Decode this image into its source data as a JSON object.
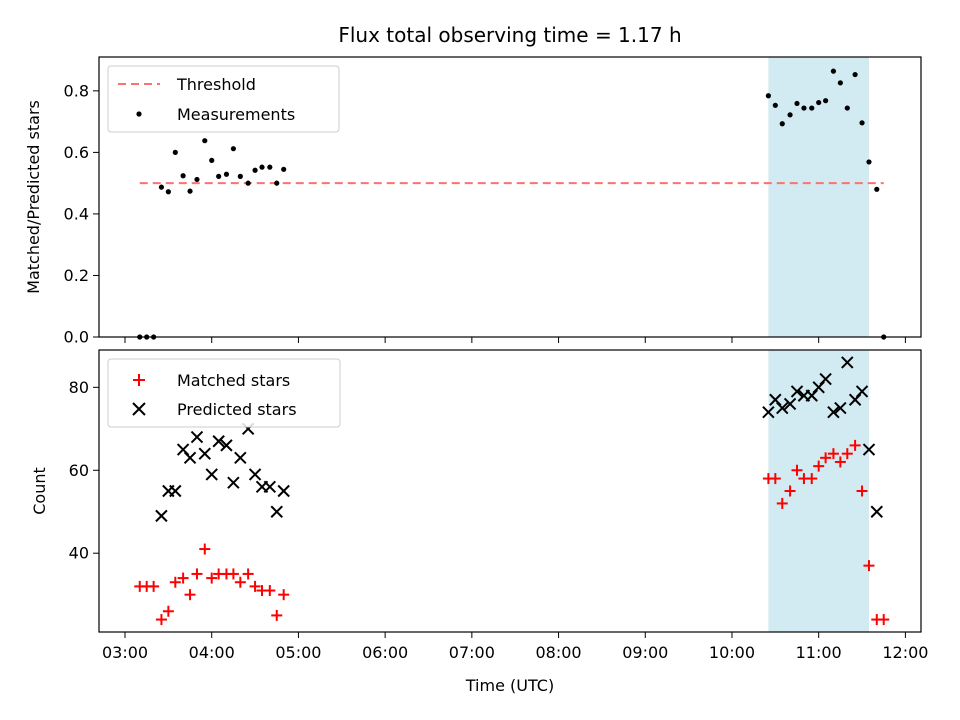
{
  "chart_data": {
    "title": "Flux total observing time = 1.17 h",
    "xlabel": "Time (UTC)",
    "xticks": [
      "03:00",
      "04:00",
      "05:00",
      "06:00",
      "07:00",
      "08:00",
      "09:00",
      "10:00",
      "11:00",
      "12:00"
    ],
    "xlim_hours": [
      2.7,
      12.18
    ],
    "shaded_span_hours": [
      10.42,
      11.58
    ],
    "shade_color": "#add8e6",
    "panels": [
      {
        "type": "scatter",
        "ylabel": "Matched/Predicted stars",
        "ylim": [
          0,
          0.91
        ],
        "yticks": [
          "0.0",
          "0.2",
          "0.4",
          "0.6",
          "0.8"
        ],
        "yticks_values": [
          0,
          0.2,
          0.4,
          0.6,
          0.8
        ],
        "legend": {
          "placement": "top-left",
          "entries": [
            "Threshold",
            "Measurements"
          ]
        },
        "threshold": {
          "name": "Threshold",
          "value": 0.5,
          "x_range_hours": [
            3.17,
            11.75
          ],
          "color": "#ff7070",
          "style": "dashed"
        },
        "series": [
          {
            "name": "Measurements",
            "marker": "dot",
            "color": "#000000",
            "points": [
              [
                3.17,
                0
              ],
              [
                3.25,
                0
              ],
              [
                3.33,
                0
              ],
              [
                3.42,
                0.487
              ],
              [
                3.5,
                0.472
              ],
              [
                3.58,
                0.6
              ],
              [
                3.67,
                0.524
              ],
              [
                3.75,
                0.474
              ],
              [
                3.83,
                0.512
              ],
              [
                3.92,
                0.638
              ],
              [
                4.0,
                0.574
              ],
              [
                4.08,
                0.522
              ],
              [
                4.17,
                0.529
              ],
              [
                4.25,
                0.612
              ],
              [
                4.33,
                0.522
              ],
              [
                4.42,
                0.5
              ],
              [
                4.5,
                0.542
              ],
              [
                4.58,
                0.552
              ],
              [
                4.67,
                0.552
              ],
              [
                4.75,
                0.5
              ],
              [
                4.83,
                0.545
              ],
              [
                10.42,
                0.784
              ],
              [
                10.5,
                0.753
              ],
              [
                10.58,
                0.693
              ],
              [
                10.67,
                0.722
              ],
              [
                10.75,
                0.759
              ],
              [
                10.83,
                0.744
              ],
              [
                10.92,
                0.744
              ],
              [
                11.0,
                0.762
              ],
              [
                11.08,
                0.768
              ],
              [
                11.17,
                0.864
              ],
              [
                11.25,
                0.826
              ],
              [
                11.33,
                0.744
              ],
              [
                11.42,
                0.853
              ],
              [
                11.5,
                0.696
              ],
              [
                11.58,
                0.569
              ],
              [
                11.67,
                0.48
              ],
              [
                11.75,
                0
              ]
            ]
          }
        ]
      },
      {
        "type": "scatter",
        "ylabel": "Count",
        "ylim": [
          21,
          89
        ],
        "yticks": [
          "40",
          "60",
          "80"
        ],
        "yticks_values": [
          40,
          60,
          80
        ],
        "legend": {
          "placement": "top-left",
          "entries": [
            "Matched stars",
            "Predicted stars"
          ]
        },
        "series": [
          {
            "name": "Matched stars",
            "marker": "plus",
            "color": "#ff0000",
            "points": [
              [
                3.17,
                32
              ],
              [
                3.25,
                32
              ],
              [
                3.33,
                32
              ],
              [
                3.42,
                24
              ],
              [
                3.5,
                26
              ],
              [
                3.58,
                33
              ],
              [
                3.67,
                34
              ],
              [
                3.75,
                30
              ],
              [
                3.83,
                35
              ],
              [
                3.92,
                41
              ],
              [
                4.0,
                34
              ],
              [
                4.08,
                35
              ],
              [
                4.17,
                35
              ],
              [
                4.25,
                35
              ],
              [
                4.33,
                33
              ],
              [
                4.42,
                35
              ],
              [
                4.5,
                32
              ],
              [
                4.58,
                31
              ],
              [
                4.67,
                31
              ],
              [
                4.75,
                25
              ],
              [
                4.83,
                30
              ],
              [
                10.42,
                58
              ],
              [
                10.5,
                58
              ],
              [
                10.58,
                52
              ],
              [
                10.67,
                55
              ],
              [
                10.75,
                60
              ],
              [
                10.83,
                58
              ],
              [
                10.92,
                58
              ],
              [
                11.0,
                61
              ],
              [
                11.08,
                63
              ],
              [
                11.17,
                64
              ],
              [
                11.25,
                62
              ],
              [
                11.33,
                64
              ],
              [
                11.42,
                66
              ],
              [
                11.5,
                55
              ],
              [
                11.58,
                37
              ],
              [
                11.67,
                24
              ],
              [
                11.75,
                24
              ]
            ]
          },
          {
            "name": "Predicted stars",
            "marker": "x",
            "color": "#000000",
            "points": [
              [
                3.42,
                49
              ],
              [
                3.5,
                55
              ],
              [
                3.58,
                55
              ],
              [
                3.67,
                65
              ],
              [
                3.75,
                63
              ],
              [
                3.83,
                68
              ],
              [
                3.92,
                64
              ],
              [
                4.0,
                59
              ],
              [
                4.08,
                67
              ],
              [
                4.17,
                66
              ],
              [
                4.25,
                57
              ],
              [
                4.33,
                63
              ],
              [
                4.42,
                70
              ],
              [
                4.5,
                59
              ],
              [
                4.58,
                56
              ],
              [
                4.67,
                56
              ],
              [
                4.75,
                50
              ],
              [
                4.83,
                55
              ],
              [
                10.42,
                74
              ],
              [
                10.5,
                77
              ],
              [
                10.58,
                75
              ],
              [
                10.67,
                76
              ],
              [
                10.75,
                79
              ],
              [
                10.83,
                78
              ],
              [
                10.92,
                78
              ],
              [
                11.0,
                80
              ],
              [
                11.08,
                82
              ],
              [
                11.17,
                74
              ],
              [
                11.25,
                75
              ],
              [
                11.33,
                86
              ],
              [
                11.42,
                77
              ],
              [
                11.5,
                79
              ],
              [
                11.58,
                65
              ],
              [
                11.67,
                50
              ]
            ]
          }
        ]
      }
    ]
  }
}
